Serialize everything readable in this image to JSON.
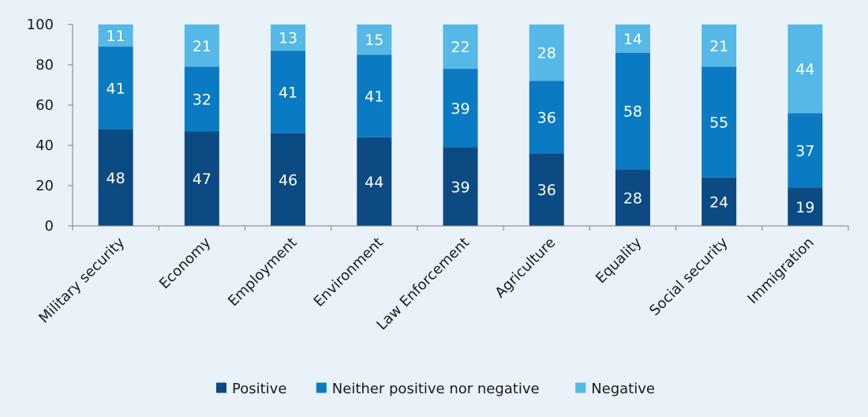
{
  "chart_data": {
    "type": "bar",
    "stacked": true,
    "categories": [
      "Military security",
      "Economy",
      "Employment",
      "Environment",
      "Law Enforcement",
      "Agriculture",
      "Equality",
      "Social security",
      "Immigration"
    ],
    "series": [
      {
        "name": "Positive",
        "color": "#0b4a82",
        "values": [
          48,
          47,
          46,
          44,
          39,
          36,
          28,
          24,
          19
        ]
      },
      {
        "name": "Neither positive nor negative",
        "color": "#0a7bc2",
        "values": [
          41,
          32,
          41,
          41,
          39,
          36,
          58,
          55,
          37
        ]
      },
      {
        "name": "Negative",
        "color": "#55b8e6",
        "values": [
          11,
          21,
          13,
          15,
          22,
          28,
          14,
          21,
          44
        ]
      }
    ],
    "ylim": [
      0,
      100
    ],
    "yticks": [
      0,
      20,
      40,
      60,
      80,
      100
    ],
    "grid": false,
    "legend_position": "bottom-center",
    "data_label_color": "#ffffff",
    "axis_color": "#7f7f7f",
    "text_color": "#1a1a1a"
  }
}
